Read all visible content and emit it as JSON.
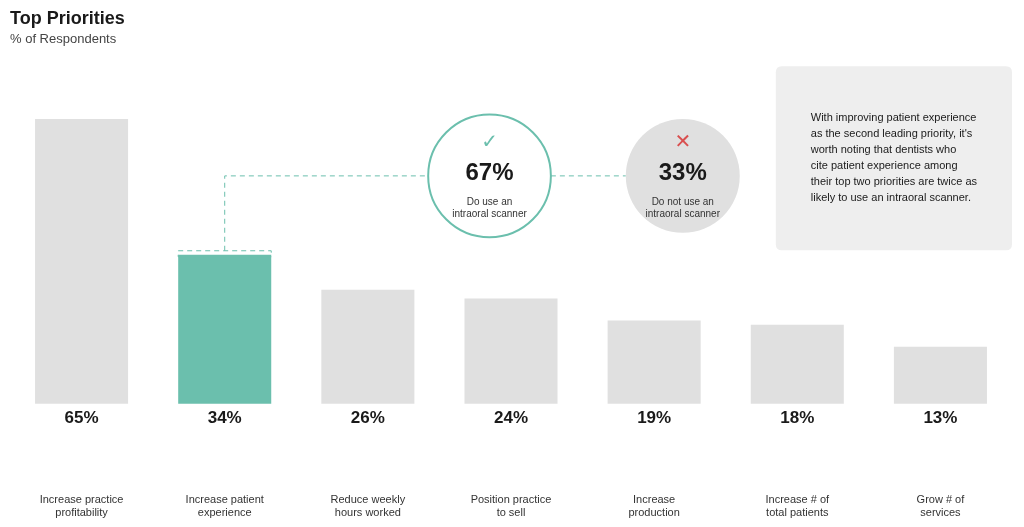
{
  "chart_data": {
    "type": "bar",
    "title": "Top Priorities",
    "subtitle": "% of Respondents",
    "categories": [
      "Increase practice\nprofitability",
      "Increase patient\nexperience",
      "Reduce weekly\nhours worked",
      "Position practice\nto sell",
      "Increase\nproduction",
      "Increase # of\ntotal patients",
      "Grow # of\nservices"
    ],
    "values": [
      65,
      34,
      26,
      24,
      19,
      18,
      13
    ],
    "value_labels": [
      "65%",
      "34%",
      "26%",
      "24%",
      "19%",
      "18%",
      "13%"
    ],
    "data_labels": true,
    "colors": [
      "#E0E0E0",
      "#6BBFAD",
      "#E0E0E0",
      "#E0E0E0",
      "#E0E0E0",
      "#E0E0E0",
      "#E0E0E0"
    ],
    "ylim": [
      -18,
      80
    ],
    "tick_labels": "x",
    "grid": false,
    "annotations": [
      {
        "icon": "✓",
        "icon_color": "#6BBFAD",
        "text": "67%",
        "label": "Do use an\nintraoral scanner",
        "color": "#6BBFAD"
      },
      {
        "icon": "✕",
        "icon_color": "#D94F4F",
        "text": "33%",
        "label": "Do not use an\nintraoral scanner",
        "color": "#E0E0E0"
      },
      {
        "text": "With improving patient experience\nas the second leading priority, it's\nworth noting that dentists who\ncite patient experience among\ntheir top two priorities are twice as\nlikely to use an intraoral scanner.",
        "color": "#EEEEEE"
      }
    ]
  }
}
